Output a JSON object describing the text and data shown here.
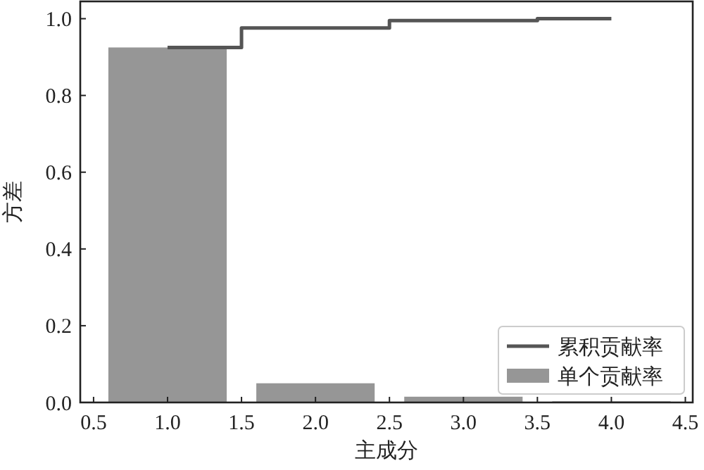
{
  "chart_data": {
    "type": "bar",
    "xlabel": "主成分",
    "ylabel": "方差",
    "x": [
      1,
      2,
      3,
      4
    ],
    "xlim": [
      0.41,
      4.55
    ],
    "xticks": [
      {
        "value": 0.5,
        "label": "0.5"
      },
      {
        "value": 1,
        "label": "1.0"
      },
      {
        "value": 1.5,
        "label": "1.5"
      },
      {
        "value": 2,
        "label": "2.0"
      },
      {
        "value": 2.5,
        "label": "2.5"
      },
      {
        "value": 3,
        "label": "3.0"
      },
      {
        "value": 3.5,
        "label": "3.5"
      },
      {
        "value": 4,
        "label": "4.0"
      },
      {
        "value": 4.5,
        "label": "4.5"
      }
    ],
    "ylim": [
      0,
      1.045
    ],
    "yticks": [
      {
        "value": 0,
        "label": "0.0"
      },
      {
        "value": 0.2,
        "label": "0.2"
      },
      {
        "value": 0.4,
        "label": "0.4"
      },
      {
        "value": 0.6,
        "label": "0.6"
      },
      {
        "value": 0.8,
        "label": "0.8"
      },
      {
        "value": 1,
        "label": "1.0"
      }
    ],
    "series": [
      {
        "name": "累积贡献率",
        "type": "step",
        "color": "#555555",
        "values": [
          0.925,
          0.976,
          0.995,
          1.0
        ]
      },
      {
        "name": "单个贡献率",
        "color": "#969696",
        "values": [
          0.925,
          0.05,
          0.015,
          0.003
        ]
      }
    ],
    "legend": "bottom right",
    "grid": false,
    "line_style": "solid"
  }
}
